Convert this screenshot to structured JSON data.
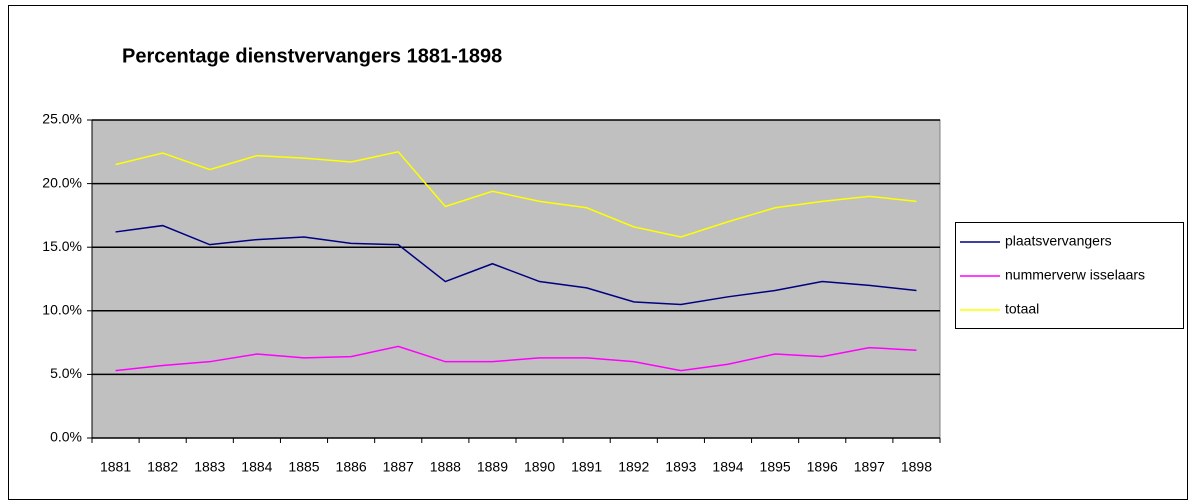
{
  "chart_data": {
    "type": "line",
    "title": "Percentage dienstvervangers 1881-1898",
    "categories": [
      "1881",
      "1882",
      "1883",
      "1884",
      "1885",
      "1886",
      "1887",
      "1888",
      "1889",
      "1890",
      "1891",
      "1892",
      "1893",
      "1894",
      "1895",
      "1896",
      "1897",
      "1898"
    ],
    "series": [
      {
        "name": "plaatsvervangers",
        "color": "#000080",
        "values": [
          16.2,
          16.7,
          15.2,
          15.6,
          15.8,
          15.3,
          15.2,
          12.3,
          13.7,
          12.3,
          11.8,
          10.7,
          10.5,
          11.1,
          11.6,
          12.3,
          12.0,
          11.6
        ]
      },
      {
        "name": "nummerverw isselaars",
        "color": "#ff00ff",
        "values": [
          5.3,
          5.7,
          6.0,
          6.6,
          6.3,
          6.4,
          7.2,
          6.0,
          6.0,
          6.3,
          6.3,
          6.0,
          5.3,
          5.8,
          6.6,
          6.4,
          7.1,
          6.9
        ]
      },
      {
        "name": "totaal",
        "color": "#ffff00",
        "values": [
          21.5,
          22.4,
          21.1,
          22.2,
          22.0,
          21.7,
          22.5,
          18.2,
          19.4,
          18.6,
          18.1,
          16.6,
          15.8,
          17.0,
          18.1,
          18.6,
          19.0,
          18.6
        ]
      }
    ],
    "ylim": [
      0,
      25
    ],
    "yticks": [
      {
        "value": 0,
        "label": "0.0%"
      },
      {
        "value": 5,
        "label": "5.0%"
      },
      {
        "value": 10,
        "label": "10.0%"
      },
      {
        "value": 15,
        "label": "15.0%"
      },
      {
        "value": 20,
        "label": "20.0%"
      },
      {
        "value": 25,
        "label": "25.0%"
      }
    ],
    "grid": true,
    "legend": "right"
  }
}
